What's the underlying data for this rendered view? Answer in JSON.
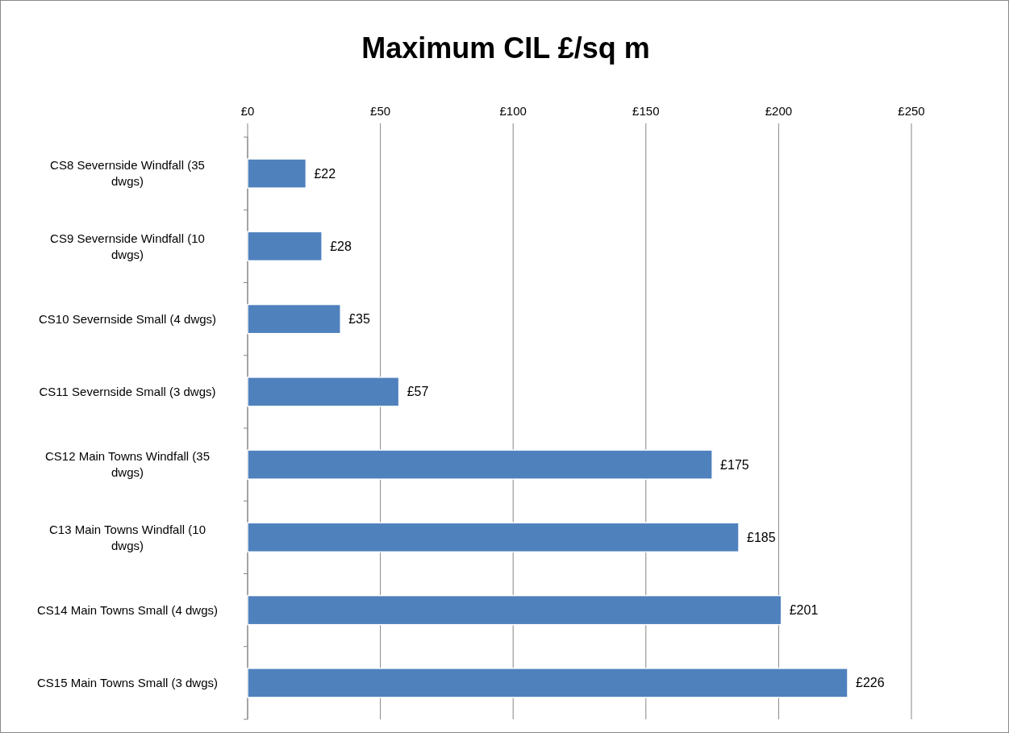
{
  "chart_data": {
    "type": "bar",
    "orientation": "horizontal",
    "title": "Maximum CIL £/sq m",
    "categories": [
      "CS8 Severnside Windfall (35 dwgs)",
      "CS9 Severnside Windfall (10 dwgs)",
      "CS10 Severnside Small (4 dwgs)",
      "CS11 Severnside Small (3 dwgs)",
      "CS12 Main Towns Windfall (35 dwgs)",
      "C13 Main Towns Windfall (10 dwgs)",
      "CS14 Main Towns Small (4 dwgs)",
      "CS15 Main Towns Small (3 dwgs)"
    ],
    "values": [
      22,
      28,
      35,
      57,
      175,
      185,
      201,
      226
    ],
    "value_labels": [
      "£22",
      "£28",
      "£35",
      "£57",
      "£175",
      "£185",
      "£201",
      "£226"
    ],
    "color": "#4f81bd",
    "xlim": [
      0,
      250
    ],
    "xticks": [
      {
        "value": 0,
        "label": "£0"
      },
      {
        "value": 50,
        "label": "£50"
      },
      {
        "value": 100,
        "label": "£100"
      },
      {
        "value": 150,
        "label": "£150"
      },
      {
        "value": 200,
        "label": "£200"
      },
      {
        "value": 250,
        "label": "£250"
      }
    ],
    "grid": "x"
  }
}
